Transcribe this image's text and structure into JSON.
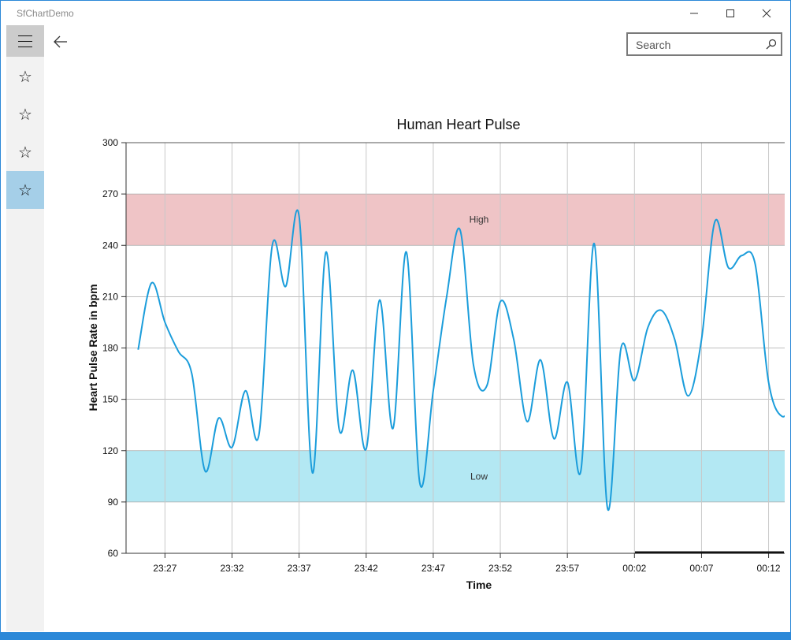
{
  "window": {
    "title": "SfChartDemo"
  },
  "titlebar": {
    "minimize_icon": "minimize-icon",
    "maximize_icon": "maximize-icon",
    "close_icon": "close-icon"
  },
  "nav": {
    "menu_icon": "hamburger-icon",
    "back_icon": "back-arrow-icon",
    "items": [
      {
        "icon": "star-icon",
        "glyph": "☆",
        "selected": false
      },
      {
        "icon": "star-icon",
        "glyph": "☆",
        "selected": false
      },
      {
        "icon": "star-icon",
        "glyph": "☆",
        "selected": false
      },
      {
        "icon": "star-icon",
        "glyph": "☆",
        "selected": true
      }
    ]
  },
  "search": {
    "placeholder": "Search",
    "value": ""
  },
  "colors": {
    "line": "#1b9ddb",
    "high_band": "#efc4c6",
    "low_band": "#b3e8f3",
    "selected_nav": "#a5cfe8",
    "accent": "#2b88d8"
  },
  "chart_data": {
    "type": "line",
    "title": "Human Heart Pulse",
    "xlabel": "Time",
    "ylabel": "Heart Pulse Rate in bpm",
    "ylim": [
      60,
      300
    ],
    "yticks": [
      "60",
      "90",
      "120",
      "150",
      "180",
      "210",
      "240",
      "270",
      "300"
    ],
    "xtick_labels": [
      "23:27",
      "23:32",
      "23:37",
      "23:42",
      "23:47",
      "23:52",
      "23:57",
      "00:02",
      "00:07",
      "00:12"
    ],
    "grid": true,
    "bands": [
      {
        "label": "High",
        "from": 240,
        "to": 270,
        "color": "#efc4c6"
      },
      {
        "label": "Low",
        "from": 90,
        "to": 120,
        "color": "#b3e8f3"
      }
    ],
    "x": [
      "23:25",
      "23:26",
      "23:27",
      "23:28",
      "23:29",
      "23:30",
      "23:31",
      "23:32",
      "23:33",
      "23:34",
      "23:35",
      "23:36",
      "23:37",
      "23:38",
      "23:39",
      "23:40",
      "23:41",
      "23:42",
      "23:43",
      "23:44",
      "23:45",
      "23:46",
      "23:47",
      "23:48",
      "23:49",
      "23:50",
      "23:51",
      "23:52",
      "23:53",
      "23:54",
      "23:55",
      "23:56",
      "23:57",
      "23:58",
      "23:59",
      "00:00",
      "00:01",
      "00:02",
      "00:03",
      "00:04",
      "00:05",
      "00:06",
      "00:07",
      "00:08",
      "00:09",
      "00:10",
      "00:11",
      "00:12",
      "00:13",
      "00:14"
    ],
    "values": [
      179,
      218,
      195,
      178,
      165,
      108,
      139,
      122,
      155,
      129,
      240,
      216,
      257,
      107,
      236,
      132,
      167,
      121,
      208,
      133,
      236,
      101,
      155,
      210,
      249,
      170,
      158,
      207,
      185,
      137,
      173,
      127,
      160,
      108,
      241,
      86,
      180,
      161,
      192,
      202,
      185,
      152,
      185,
      254,
      227,
      234,
      229,
      160,
      140,
      150
    ]
  }
}
